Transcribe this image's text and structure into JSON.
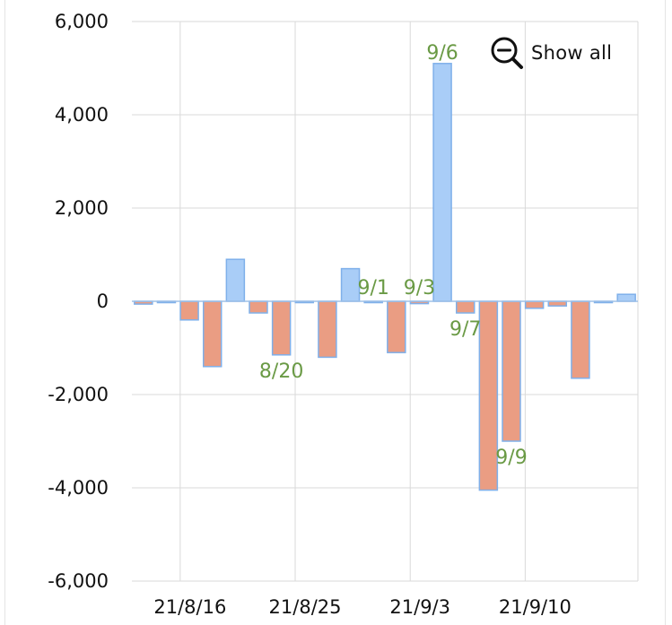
{
  "show_all": {
    "label": "Show all",
    "icon": "zoom-out-icon"
  },
  "colors": {
    "positive_fill": "#a9cdf7",
    "positive_stroke": "#7fb0ea",
    "negative_fill": "#ea9d83",
    "negative_stroke": "#7fb0ea",
    "grid": "#d9d9d9",
    "label_green": "#6a9a45"
  },
  "chart_data": {
    "type": "bar",
    "title": "",
    "xlabel": "",
    "ylabel": "",
    "ylim": [
      -6000,
      6000
    ],
    "yticks": [
      6000,
      4000,
      2000,
      0,
      -2000,
      -4000,
      -6000
    ],
    "ytick_labels": [
      "6,000",
      "4,000",
      "2,000",
      "0",
      "-2,000",
      "-4,000",
      "-6,000"
    ],
    "xtick_labels": [
      "21/8/16",
      "21/8/25",
      "21/9/3",
      "21/9/10"
    ],
    "grid": true,
    "values": [
      -60,
      0,
      -400,
      -1400,
      900,
      -250,
      -1150,
      0,
      -1200,
      700,
      0,
      -1100,
      -50,
      5100,
      -250,
      -4050,
      -3000,
      -150,
      -100,
      -1650,
      0,
      150
    ],
    "data_labels": [
      {
        "bar": 6,
        "text": "8/20"
      },
      {
        "bar": 10,
        "text": "9/1"
      },
      {
        "bar": 12,
        "text": "9/3"
      },
      {
        "bar": 13,
        "text": "9/6"
      },
      {
        "bar": 14,
        "text": "9/7"
      },
      {
        "bar": 16,
        "text": "9/9"
      }
    ]
  }
}
